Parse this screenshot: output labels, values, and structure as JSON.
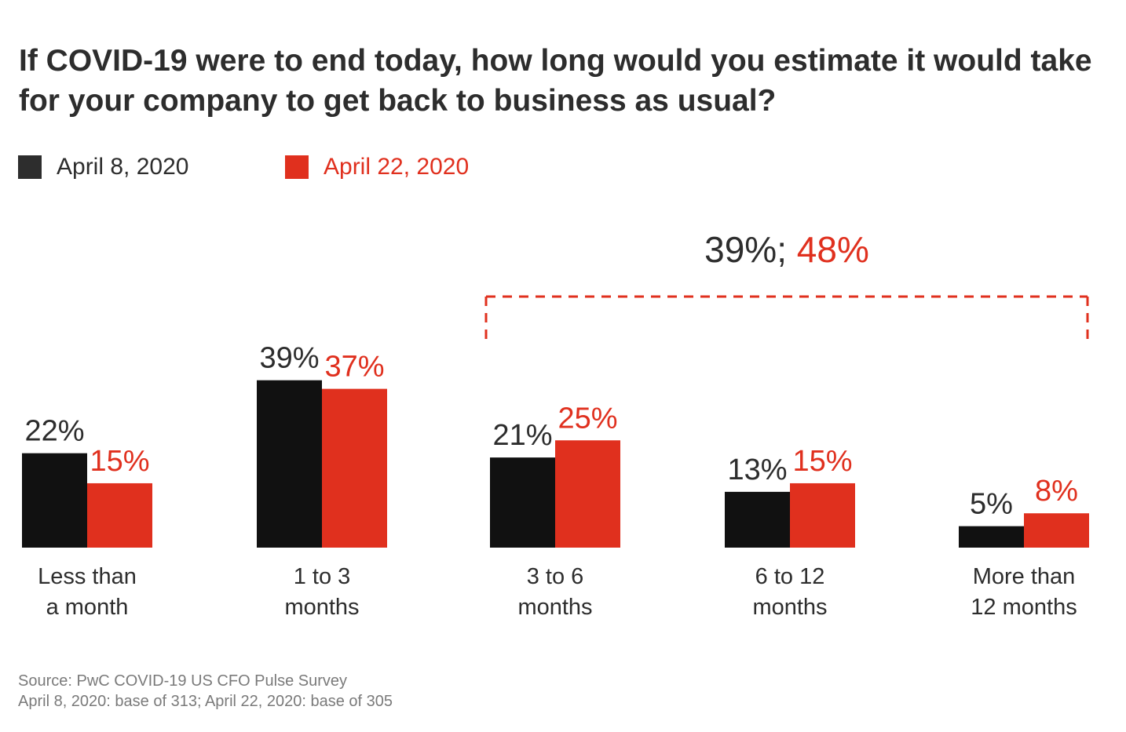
{
  "colors": {
    "series1": "#111111",
    "series2": "#e0301e",
    "text": "#2d2d2d",
    "muted": "#7a7a7a"
  },
  "chart_data": {
    "type": "bar",
    "title": "If COVID-19 were to end today, how long would you estimate it would take for your company to get back to business as usual?",
    "legend": "top-left",
    "grid": false,
    "ylim": [
      0,
      40
    ],
    "categories": [
      [
        "Less than",
        "a month"
      ],
      [
        "1 to 3",
        "months"
      ],
      [
        "3 to 6",
        "months"
      ],
      [
        "6 to 12",
        "months"
      ],
      [
        "More than",
        "12 months"
      ]
    ],
    "series": [
      {
        "name": "April 8, 2020",
        "values": [
          22,
          39,
          21,
          13,
          5
        ],
        "labels": [
          "22%",
          "39%",
          "21%",
          "13%",
          "5%"
        ]
      },
      {
        "name": "April 22, 2020",
        "values": [
          15,
          37,
          25,
          15,
          8
        ],
        "labels": [
          "15%",
          "37%",
          "25%",
          "15%",
          "8%"
        ]
      }
    ],
    "annotation": {
      "text_a": "39%;",
      "text_b": "48%",
      "spans_categories": [
        2,
        4
      ]
    }
  },
  "source": {
    "line1": "Source: PwC COVID-19 US CFO Pulse Survey",
    "line2": "April 8, 2020: base of 313; April 22, 2020: base of 305"
  }
}
